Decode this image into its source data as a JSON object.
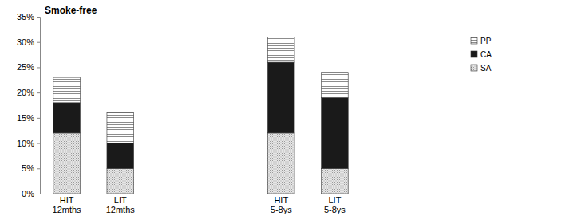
{
  "chart_data": {
    "type": "bar",
    "title": "Smoke-free",
    "stacked": true,
    "legend": "right",
    "categories": [
      "HIT 12mths",
      "LIT 12mths",
      null,
      null,
      "HIT 5-8ys",
      "LIT 5-8ys"
    ],
    "series": [
      {
        "name": "SA",
        "color": "#9a9a9a",
        "values": [
          12,
          5,
          null,
          null,
          12,
          5
        ]
      },
      {
        "name": "CA",
        "color": "#1a1a1a",
        "values": [
          6,
          5,
          null,
          null,
          14,
          14
        ]
      },
      {
        "name": "PP",
        "color": "#8c8c8c",
        "values": [
          5,
          6,
          null,
          null,
          5,
          5
        ]
      }
    ],
    "ylim": [
      0,
      35
    ],
    "yticks": [
      {
        "value": 0,
        "label": "0%"
      },
      {
        "value": 5,
        "label": "5%"
      },
      {
        "value": 10,
        "label": "10%"
      },
      {
        "value": 15,
        "label": "15%"
      },
      {
        "value": 20,
        "label": "20%"
      },
      {
        "value": 25,
        "label": "25%"
      },
      {
        "value": 30,
        "label": "30%"
      },
      {
        "value": 35,
        "label": "35%"
      }
    ],
    "grid": false
  }
}
